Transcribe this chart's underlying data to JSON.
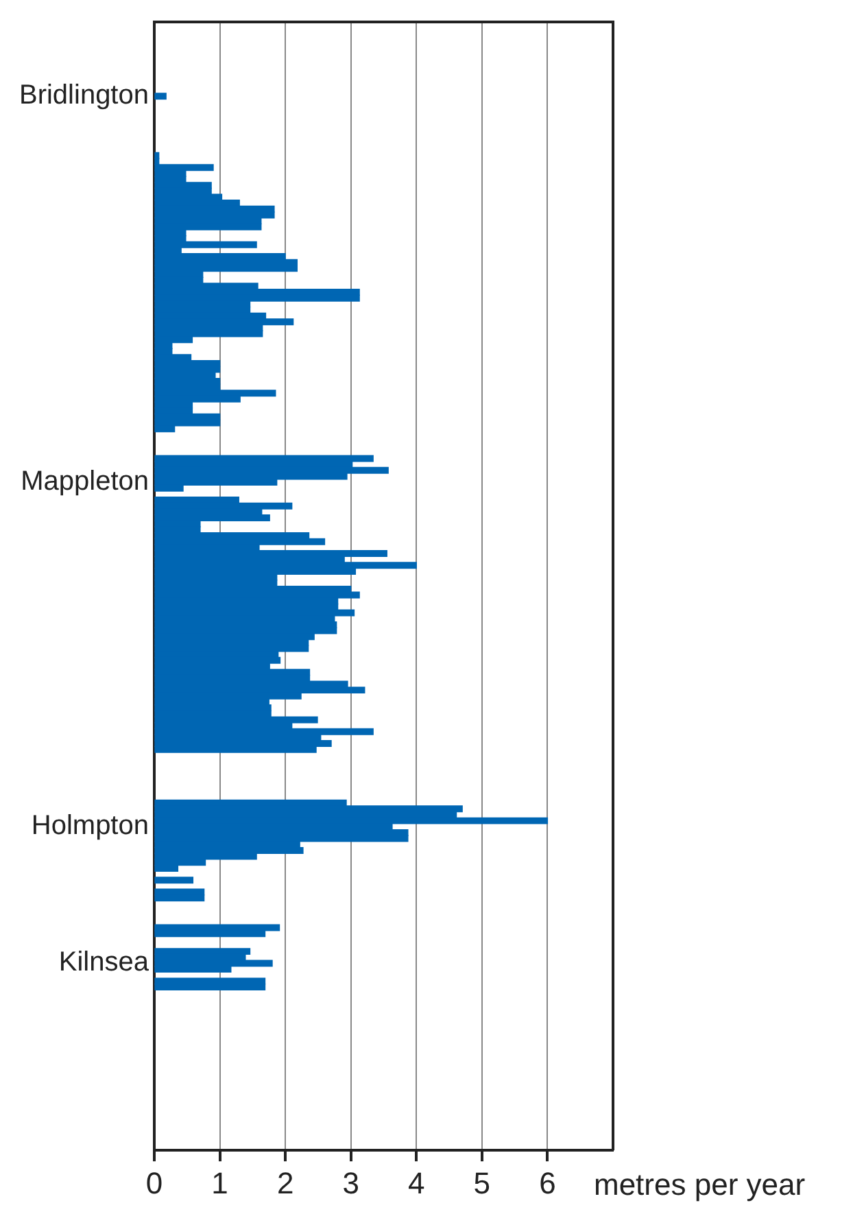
{
  "chart_data": {
    "type": "bar",
    "orientation": "horizontal",
    "xlabel": "metres per year",
    "color": "#0066b3",
    "grid": "x",
    "xlim": [
      0,
      7
    ],
    "xticks": [
      0,
      1,
      2,
      3,
      4,
      5,
      6
    ],
    "categories": [
      null,
      null,
      null,
      null,
      null,
      null,
      null,
      null,
      null,
      null,
      null,
      null,
      "Bridlington",
      null,
      null,
      null,
      null,
      null,
      null,
      null,
      null,
      null,
      null,
      null,
      null,
      null,
      null,
      null,
      null,
      null,
      null,
      null,
      null,
      null,
      null,
      null,
      null,
      null,
      null,
      null,
      null,
      null,
      null,
      null,
      null,
      null,
      null,
      null,
      null,
      null,
      null,
      null,
      null,
      null,
      null,
      null,
      null,
      null,
      null,
      null,
      null,
      null,
      null,
      null,
      null,
      null,
      null,
      null,
      null,
      null,
      null,
      null,
      null,
      null,
      null,
      null,
      null,
      "Mappleton",
      null,
      null,
      null,
      null,
      null,
      null,
      null,
      null,
      null,
      null,
      null,
      null,
      null,
      null,
      null,
      null,
      null,
      null,
      null,
      null,
      null,
      null,
      null,
      null,
      null,
      null,
      null,
      null,
      null,
      null,
      null,
      null,
      null,
      null,
      null,
      null,
      null,
      null,
      null,
      null,
      null,
      null,
      null,
      null,
      null,
      null,
      null,
      null,
      null,
      null,
      null,
      null,
      null,
      null,
      null,
      null,
      null,
      "Holmpton",
      null,
      null,
      null,
      null,
      null,
      null,
      null,
      null,
      null,
      null,
      null,
      null,
      null,
      null,
      null,
      null,
      null,
      null,
      null,
      null,
      null,
      null,
      "Kilnsea",
      null,
      null,
      null,
      null,
      null,
      null,
      null,
      null,
      null,
      null,
      null,
      null,
      null,
      null,
      null,
      null,
      null,
      null,
      null,
      null,
      null,
      null,
      null,
      null,
      null,
      null,
      null,
      null,
      null,
      null,
      null
    ],
    "values": [
      null,
      null,
      null,
      null,
      null,
      null,
      null,
      null,
      null,
      null,
      null,
      null,
      0.18,
      null,
      null,
      null,
      null,
      null,
      null,
      null,
      null,
      null,
      0.07,
      0.07,
      0.9,
      0.48,
      0.48,
      0.87,
      0.87,
      1.03,
      1.3,
      1.83,
      1.83,
      1.63,
      1.63,
      0.48,
      0.48,
      1.56,
      0.41,
      2.0,
      2.18,
      2.18,
      0.74,
      0.74,
      1.58,
      3.13,
      3.13,
      1.46,
      1.46,
      1.7,
      2.12,
      1.65,
      1.65,
      0.58,
      0.27,
      0.27,
      0.56,
      1.0,
      1.0,
      0.93,
      1.0,
      1.0,
      1.85,
      1.31,
      0.58,
      0.58,
      1.0,
      1.0,
      0.31,
      null,
      null,
      null,
      null,
      3.34,
      3.02,
      3.57,
      2.94,
      1.87,
      0.44,
      null,
      1.29,
      2.1,
      1.64,
      1.76,
      0.7,
      0.7,
      2.36,
      2.6,
      1.6,
      3.55,
      2.9,
      4.0,
      3.07,
      1.87,
      1.87,
      3.0,
      3.13,
      2.8,
      2.8,
      3.05,
      2.75,
      2.78,
      2.78,
      2.44,
      2.35,
      2.35,
      1.89,
      1.92,
      1.76,
      2.37,
      2.37,
      2.95,
      3.21,
      2.24,
      1.75,
      1.78,
      1.78,
      2.49,
      2.1,
      3.34,
      2.54,
      2.7,
      2.47,
      null,
      null,
      null,
      null,
      null,
      null,
      null,
      null,
      2.93,
      4.7,
      4.61,
      6.0,
      3.63,
      3.87,
      3.87,
      2.22,
      2.27,
      1.56,
      0.78,
      0.36,
      null,
      0.59,
      null,
      0.76,
      0.76,
      null,
      null,
      null,
      null,
      1.91,
      1.69,
      null,
      null,
      1.46,
      1.39,
      1.8,
      1.17,
      null,
      1.69,
      1.69,
      null,
      null,
      null,
      null,
      null,
      null,
      null,
      null,
      null,
      null,
      null,
      null,
      null,
      null,
      null,
      null,
      null,
      null,
      null,
      null,
      null,
      null,
      null,
      null,
      null,
      null,
      null
    ]
  }
}
